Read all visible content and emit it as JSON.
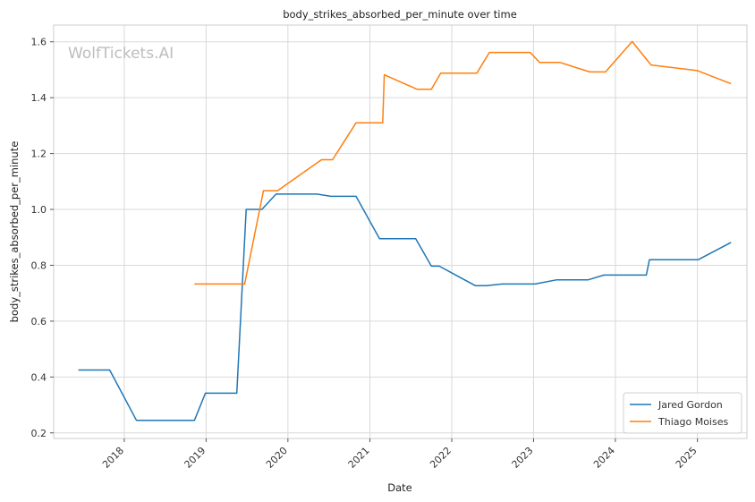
{
  "chart_data": {
    "type": "line",
    "title": "body_strikes_absorbed_per_minute over time",
    "xlabel": "Date",
    "ylabel": "body_strikes_absorbed_per_minute",
    "watermark": "WolfTickets.AI",
    "xlim": [
      "2017-02-20",
      "2025-08-10"
    ],
    "ylim": [
      0.18,
      1.66
    ],
    "x_ticks": [
      "2018-01-01",
      "2019-01-01",
      "2020-01-01",
      "2021-01-01",
      "2022-01-01",
      "2023-01-01",
      "2024-01-01",
      "2025-01-01"
    ],
    "x_tick_labels": [
      "2018",
      "2019",
      "2020",
      "2021",
      "2022",
      "2023",
      "2024",
      "2025"
    ],
    "y_ticks": [
      0.2,
      0.4,
      0.6,
      0.8,
      1.0,
      1.2,
      1.4,
      1.6
    ],
    "y_tick_labels": [
      "0.2",
      "0.4",
      "0.6",
      "0.8",
      "1.0",
      "1.2",
      "1.4",
      "1.6"
    ],
    "grid": true,
    "legend_position": "bottom-right",
    "series": [
      {
        "name": "Jared Gordon",
        "color": "#1f77b4",
        "points": [
          [
            "2017-06-10",
            0.425
          ],
          [
            "2017-10-28",
            0.425
          ],
          [
            "2018-02-24",
            0.245
          ],
          [
            "2018-11-10",
            0.245
          ],
          [
            "2018-12-29",
            0.342
          ],
          [
            "2019-05-18",
            0.342
          ],
          [
            "2019-06-29",
            1.0
          ],
          [
            "2019-09-07",
            1.0
          ],
          [
            "2019-11-09",
            1.055
          ],
          [
            "2020-05-09",
            1.055
          ],
          [
            "2020-07-11",
            1.047
          ],
          [
            "2020-10-31",
            1.047
          ],
          [
            "2021-02-13",
            0.895
          ],
          [
            "2021-07-24",
            0.895
          ],
          [
            "2021-10-02",
            0.797
          ],
          [
            "2021-11-06",
            0.797
          ],
          [
            "2022-04-16",
            0.727
          ],
          [
            "2022-06-04",
            0.727
          ],
          [
            "2022-08-13",
            0.733
          ],
          [
            "2023-01-07",
            0.733
          ],
          [
            "2023-04-15",
            0.748
          ],
          [
            "2023-09-02",
            0.748
          ],
          [
            "2023-11-11",
            0.765
          ],
          [
            "2024-05-18",
            0.765
          ],
          [
            "2024-06-01",
            0.82
          ],
          [
            "2025-01-05",
            0.82
          ],
          [
            "2025-05-31",
            0.882
          ]
        ]
      },
      {
        "name": "Thiago Moises",
        "color": "#ff7f0e",
        "points": [
          [
            "2018-11-10",
            0.733
          ],
          [
            "2019-06-22",
            0.733
          ],
          [
            "2019-09-14",
            1.067
          ],
          [
            "2019-11-16",
            1.067
          ],
          [
            "2020-05-30",
            1.178
          ],
          [
            "2020-07-18",
            1.178
          ],
          [
            "2020-10-31",
            1.31
          ],
          [
            "2021-02-27",
            1.31
          ],
          [
            "2021-03-06",
            1.482
          ],
          [
            "2021-07-31",
            1.43
          ],
          [
            "2021-10-02",
            1.43
          ],
          [
            "2021-11-13",
            1.488
          ],
          [
            "2022-04-23",
            1.488
          ],
          [
            "2022-06-18",
            1.562
          ],
          [
            "2022-12-17",
            1.562
          ],
          [
            "2023-01-28",
            1.526
          ],
          [
            "2023-04-29",
            1.526
          ],
          [
            "2023-09-09",
            1.492
          ],
          [
            "2023-11-18",
            1.492
          ],
          [
            "2024-03-16",
            1.601
          ],
          [
            "2024-06-08",
            1.517
          ],
          [
            "2025-01-01",
            1.497
          ],
          [
            "2025-05-31",
            1.45
          ]
        ]
      }
    ]
  }
}
